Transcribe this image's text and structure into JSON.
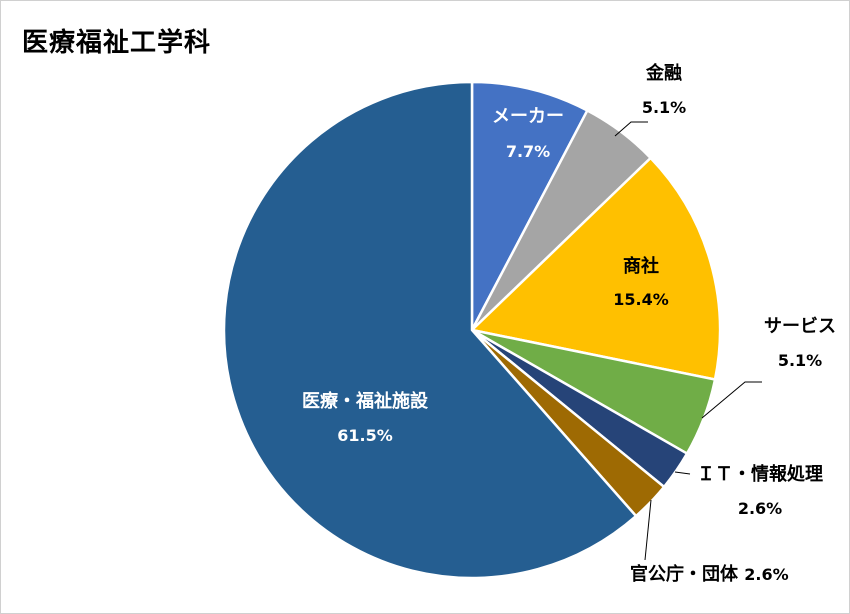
{
  "chart_data": {
    "type": "pie",
    "title": "医療福祉工学科",
    "slices": [
      {
        "label": "メーカー",
        "value": 7.7,
        "value_label": "7.7%",
        "color": "#4472C4",
        "label_position": "inside",
        "label_color": "#ffffff"
      },
      {
        "label": "金融",
        "value": 5.1,
        "value_label": "5.1%",
        "color": "#A5A5A5",
        "label_position": "outside",
        "label_color": "#000000"
      },
      {
        "label": "商社",
        "value": 15.4,
        "value_label": "15.4%",
        "color": "#FFC000",
        "label_position": "inside",
        "label_color": "#000000"
      },
      {
        "label": "サービス",
        "value": 5.1,
        "value_label": "5.1%",
        "color": "#70AD47",
        "label_position": "outside",
        "label_color": "#000000"
      },
      {
        "label": "ＩＴ・情報処理",
        "value": 2.6,
        "value_label": "2.6%",
        "color": "#264478",
        "label_position": "outside",
        "label_color": "#000000"
      },
      {
        "label": "官公庁・団体",
        "value": 2.6,
        "value_label": "2.6%",
        "color": "#9E6A03",
        "label_position": "outside",
        "label_color": "#000000"
      },
      {
        "label": "医療・福祉施設",
        "value": 61.5,
        "value_label": "61.5%",
        "color": "#255E91",
        "label_position": "inside",
        "label_color": "#ffffff"
      }
    ],
    "start_angle": "12 o'clock",
    "direction": "clockwise"
  }
}
